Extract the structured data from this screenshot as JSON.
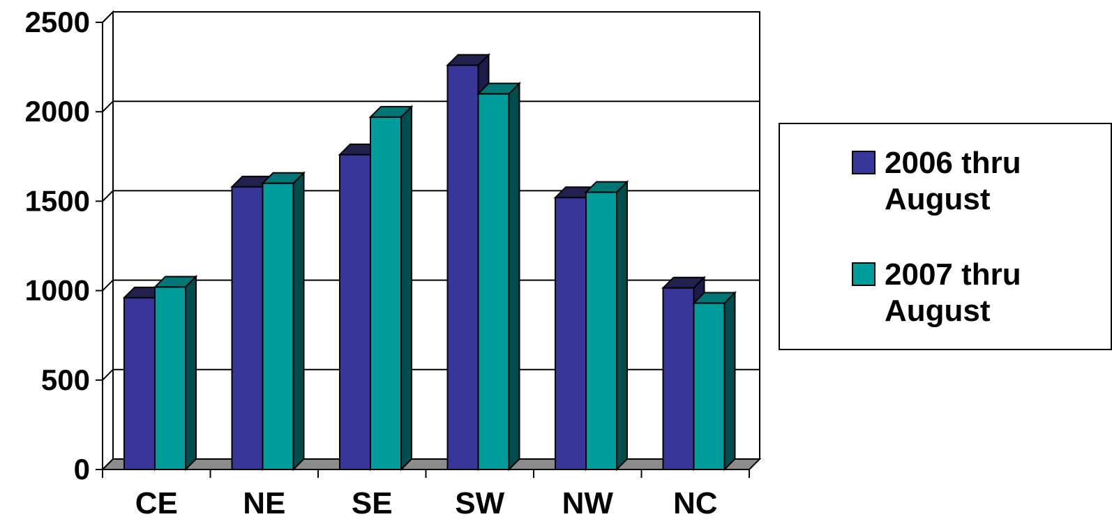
{
  "chart_data": {
    "type": "bar",
    "categories": [
      "CE",
      "NE",
      "SE",
      "SW",
      "NW",
      "NC"
    ],
    "series": [
      {
        "name": "2006 thru August",
        "values": [
          960,
          1580,
          1760,
          2260,
          1520,
          1015
        ],
        "color": "#383699",
        "top_color": "#22214d",
        "side_color": "#1c1b4a"
      },
      {
        "name": "2007 thru August",
        "values": [
          1020,
          1600,
          1970,
          2100,
          1550,
          930
        ],
        "color": "#009c9c",
        "top_color": "#007575",
        "side_color": "#004d4d"
      }
    ],
    "title": "",
    "xlabel": "",
    "ylabel": "",
    "ylim": [
      0,
      2500
    ],
    "yticks": [
      0,
      500,
      1000,
      1500,
      2000,
      2500
    ],
    "grid": true,
    "legend_position": "right"
  }
}
